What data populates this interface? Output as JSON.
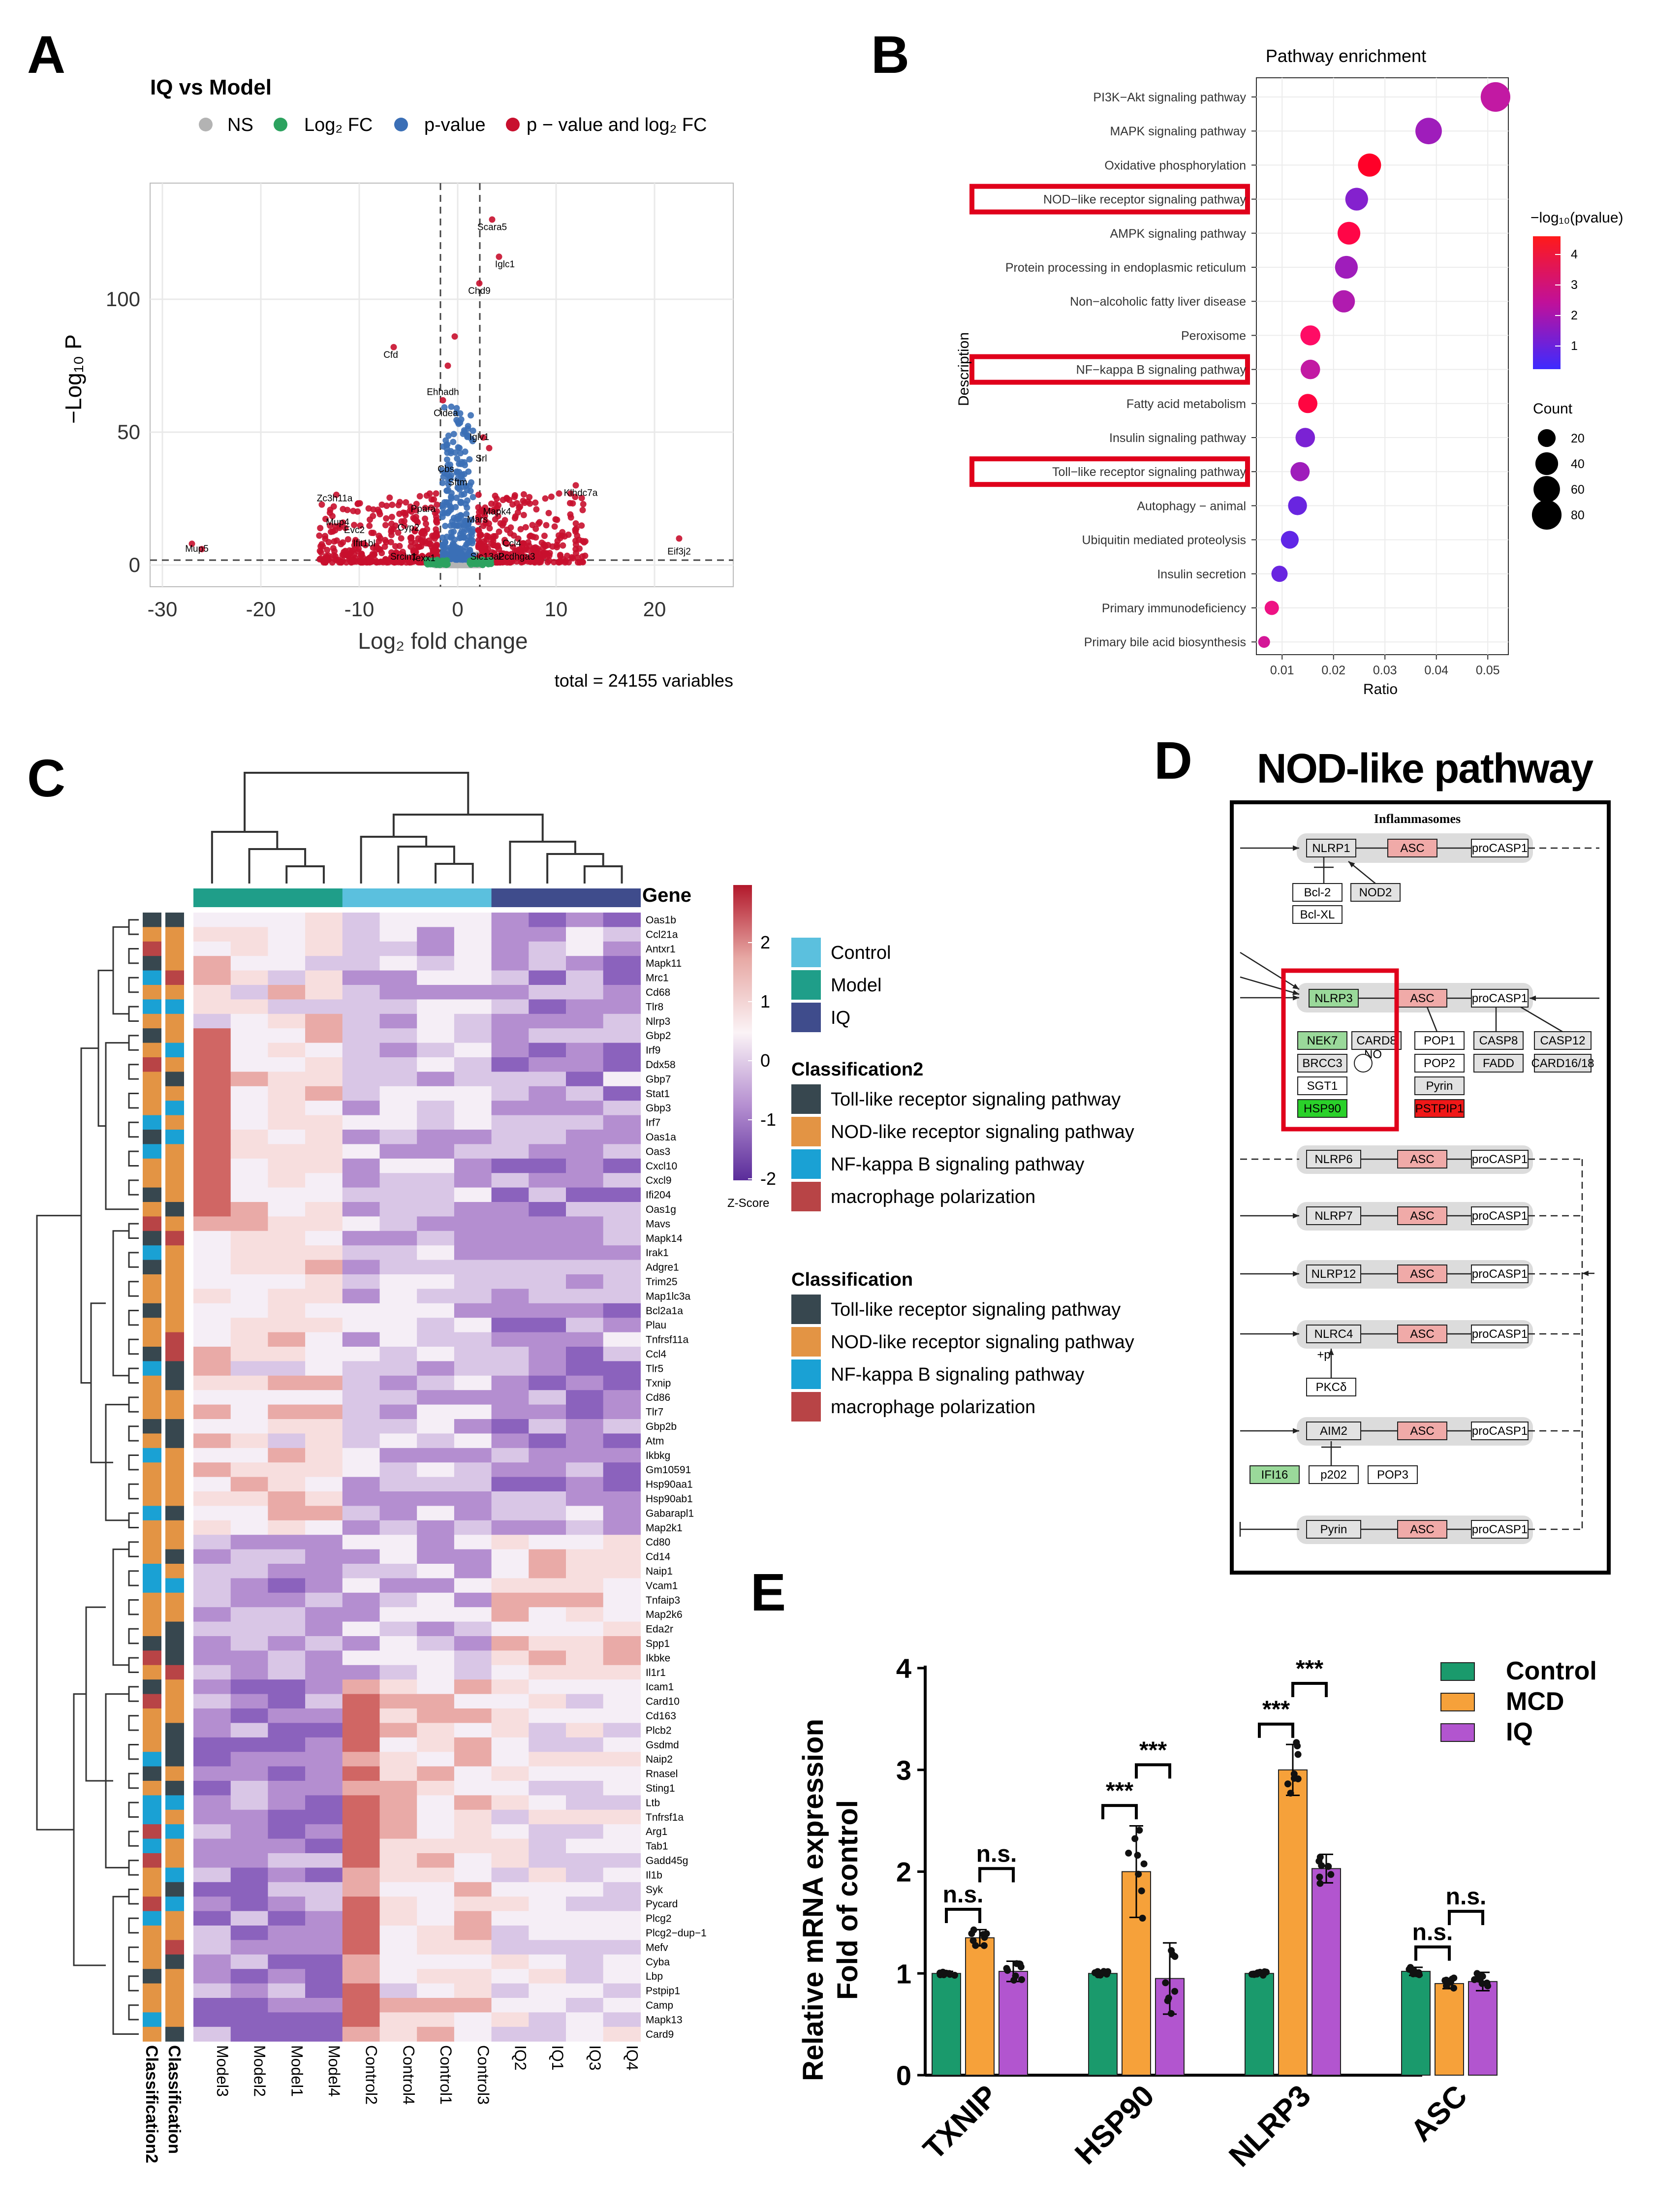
{
  "panels": {
    "A": "A",
    "B": "B",
    "C": "C",
    "D": "D",
    "E": "E"
  },
  "volcano": {
    "title": "IQ vs Model",
    "legend": [
      "NS",
      "Log₂ FC",
      "p-value",
      "p − value and log₂ FC"
    ],
    "xlabel": "Log₂ fold change",
    "ylabel": "−Log₁₀ P",
    "xticks": [
      "-30",
      "-20",
      "-10",
      "0",
      "10",
      "20"
    ],
    "yticks": [
      "0",
      "50",
      "100"
    ],
    "caption": "total = 24155 variables",
    "genes": [
      "Scara5",
      "Iglc1",
      "Chd9",
      "Cfd",
      "Ehhadh",
      "Cidea",
      "Iglv1",
      "Srl",
      "Cbs",
      "Zc3h11a",
      "Mup5",
      "Eif3j2",
      "Klhdc7a",
      "Pcdhga3",
      "Slc13a2",
      "Srcin1",
      "Texx1",
      "Ifit1bl",
      "Evc2",
      "Mup4",
      "Ppara",
      "Cyp2",
      "Mapk4",
      "Mars",
      "Ccl4",
      "Sftm"
    ],
    "colors": {
      "ns": "#b3b3b3",
      "fc": "#2ca25f",
      "p": "#3b6fb6",
      "both": "#c8102e"
    }
  },
  "chart_data": [
    {
      "type": "scatter",
      "title": "Pathway enrichment",
      "xlabel": "Ratio",
      "ylabel": "Description",
      "xticks": [
        "0.01",
        "0.02",
        "0.03",
        "0.04",
        "0.05"
      ],
      "xlim": [
        0.005,
        0.054
      ],
      "colorbar_title": "−log₁₀(pvalue)",
      "colorbar_ticks": [
        "4",
        "3",
        "2",
        "1"
      ],
      "size_title": "Count",
      "size_ticks": [
        "20",
        "40",
        "60",
        "80"
      ],
      "points": [
        {
          "term": "PI3K−Akt signaling pathway",
          "ratio": 0.0515,
          "logp": 2.0,
          "count": 80,
          "boxed": false
        },
        {
          "term": "MAPK signaling pathway",
          "ratio": 0.0385,
          "logp": 1.6,
          "count": 60,
          "boxed": false
        },
        {
          "term": "Oxidative phosphorylation",
          "ratio": 0.027,
          "logp": 4.0,
          "count": 42,
          "boxed": false
        },
        {
          "term": "NOD−like receptor signaling pathway",
          "ratio": 0.0245,
          "logp": 1.3,
          "count": 40,
          "boxed": true
        },
        {
          "term": "AMPK signaling pathway",
          "ratio": 0.023,
          "logp": 3.5,
          "count": 40,
          "boxed": false
        },
        {
          "term": "Protein processing in endoplasmic reticulum",
          "ratio": 0.0225,
          "logp": 1.6,
          "count": 40,
          "boxed": false
        },
        {
          "term": "Non−alcoholic fatty liver disease",
          "ratio": 0.022,
          "logp": 1.8,
          "count": 38,
          "boxed": false
        },
        {
          "term": "Peroxisome",
          "ratio": 0.0155,
          "logp": 3.0,
          "count": 28,
          "boxed": false
        },
        {
          "term": "NF−kappa B signaling pathway",
          "ratio": 0.0155,
          "logp": 2.0,
          "count": 26,
          "boxed": true
        },
        {
          "term": "Fatty acid metabolism",
          "ratio": 0.015,
          "logp": 3.6,
          "count": 25,
          "boxed": false
        },
        {
          "term": "Insulin signaling pathway",
          "ratio": 0.0145,
          "logp": 1.2,
          "count": 26,
          "boxed": false
        },
        {
          "term": "Toll−like receptor signaling pathway",
          "ratio": 0.0135,
          "logp": 1.6,
          "count": 25,
          "boxed": true
        },
        {
          "term": "Autophagy − animal",
          "ratio": 0.013,
          "logp": 1.0,
          "count": 24,
          "boxed": false
        },
        {
          "term": "Ubiquitin mediated proteolysis",
          "ratio": 0.0115,
          "logp": 0.9,
          "count": 20,
          "boxed": false
        },
        {
          "term": "Insulin secretion",
          "ratio": 0.0095,
          "logp": 1.0,
          "count": 15,
          "boxed": false
        },
        {
          "term": "Primary immunodeficiency",
          "ratio": 0.008,
          "logp": 2.5,
          "count": 10,
          "boxed": false
        },
        {
          "term": "Primary bile acid biosynthesis",
          "ratio": 0.0065,
          "logp": 2.2,
          "count": 5,
          "boxed": false
        }
      ]
    },
    {
      "type": "bar",
      "ylabel_line1": "Relative mRNA expression",
      "ylabel_line2": "Fold of control",
      "categories": [
        "TXNIP",
        "HSP90",
        "NLRP3",
        "ASC"
      ],
      "ylim": [
        0,
        4
      ],
      "yticks": [
        "0",
        "1",
        "2",
        "3",
        "4"
      ],
      "series": [
        {
          "name": "Control",
          "color": "#1a9a6c",
          "values": [
            1.0,
            1.0,
            1.0,
            1.02
          ],
          "err": [
            0.02,
            0.02,
            0.02,
            0.04
          ]
        },
        {
          "name": "MCD",
          "color": "#f6a13a",
          "values": [
            1.35,
            2.0,
            3.0,
            0.9
          ],
          "err": [
            0.08,
            0.45,
            0.25,
            0.05
          ]
        },
        {
          "name": "IQ",
          "color": "#b255cf",
          "values": [
            1.02,
            0.95,
            2.03,
            0.92
          ],
          "err": [
            0.1,
            0.35,
            0.14,
            0.09
          ]
        }
      ],
      "significance": [
        {
          "cat": 0,
          "from": 0,
          "to": 1,
          "label": "n.s."
        },
        {
          "cat": 0,
          "from": 1,
          "to": 2,
          "label": "n.s."
        },
        {
          "cat": 1,
          "from": 0,
          "to": 1,
          "label": "***"
        },
        {
          "cat": 1,
          "from": 1,
          "to": 2,
          "label": "***"
        },
        {
          "cat": 2,
          "from": 0,
          "to": 1,
          "label": "***"
        },
        {
          "cat": 2,
          "from": 1,
          "to": 2,
          "label": "***"
        },
        {
          "cat": 3,
          "from": 0,
          "to": 1,
          "label": "n.s."
        },
        {
          "cat": 3,
          "from": 1,
          "to": 2,
          "label": "n.s."
        }
      ]
    }
  ],
  "heatmap": {
    "group_header": "Gene",
    "samples": [
      "Model3",
      "Model2",
      "Model1",
      "Model4",
      "Control2",
      "Control4",
      "Control1",
      "Control3",
      "IQ2",
      "IQ1",
      "IQ3",
      "IQ4"
    ],
    "genes": [
      "Oas1b",
      "Ccl21a",
      "Antxr1",
      "Mapk11",
      "Mrc1",
      "Cd68",
      "Tlr8",
      "Nlrp3",
      "Gbp2",
      "Irf9",
      "Ddx58",
      "Gbp7",
      "Stat1",
      "Gbp3",
      "Irf7",
      "Oas1a",
      "Oas3",
      "Cxcl10",
      "Cxcl9",
      "Ifi204",
      "Oas1g",
      "Mavs",
      "Mapk14",
      "Irak1",
      "Adgre1",
      "Trim25",
      "Map1lc3a",
      "Bcl2a1a",
      "Plau",
      "Tnfrsf11a",
      "Ccl4",
      "Tlr5",
      "Txnip",
      "Cd86",
      "Tlr7",
      "Gbp2b",
      "Atm",
      "Ikbkg",
      "Gm10591",
      "Hsp90aa1",
      "Hsp90ab1",
      "Gabarapl1",
      "Map2k1",
      "Cd80",
      "Cd14",
      "Naip1",
      "Vcam1",
      "Tnfaip3",
      "Map2k6",
      "Eda2r",
      "Spp1",
      "Ikbke",
      "Il1r1",
      "Icam1",
      "Card10",
      "Cd163",
      "Plcb2",
      "Gsdmd",
      "Naip2",
      "Rnasel",
      "Sting1",
      "Ltb",
      "Tnfrsf1a",
      "Arg1",
      "Tab1",
      "Gadd45g",
      "Il1b",
      "Syk",
      "Pycard",
      "Plcg2",
      "Plcg2−dup−1",
      "Mefv",
      "Cyba",
      "Lbp",
      "Pstpip1",
      "Camp",
      "Mapk13",
      "Card9"
    ],
    "colorbar_ticks": [
      "2",
      "1",
      "0",
      "-1",
      "-2"
    ],
    "colorbar_label": "Z-Score",
    "group_legend": [
      "Control",
      "Model",
      "IQ"
    ],
    "group_colors": {
      "Control": "#5bc0de",
      "Model": "#1f9e89",
      "IQ": "#3f4c8c"
    },
    "class2_title": "Classification2",
    "class_title": "Classification",
    "class_items": [
      "Toll-like receptor signaling pathway",
      "NOD-like receptor signaling pathway",
      "NF-kappa B signaling pathway",
      "macrophage polarization"
    ],
    "class_colors": [
      "#37474f",
      "#e39444",
      "#1aa1d4",
      "#b84446"
    ],
    "col_labels": [
      "Classification2",
      "Classification"
    ]
  },
  "pathway": {
    "title": "NOD-like pathway",
    "box_title": "Inflammasomes",
    "nodes": {
      "nlrp1": "NLRP1",
      "asc": "ASC",
      "procasp1": "proCASP1",
      "bcl2": "Bcl-2",
      "nod2": "NOD2",
      "bclxl": "Bcl-XL",
      "nlrp3": "NLRP3",
      "nek7": "NEK7",
      "card8": "CARD8",
      "brcc3": "BRCC3",
      "no": "NO",
      "sgt1": "SGT1",
      "hsp90": "HSP90",
      "pop1": "POP1",
      "pop2": "POP2",
      "pyrin": "Pyrin",
      "pstpip1": "PSTPIP1",
      "casp8": "CASP8",
      "fadd": "FADD",
      "casp12": "CASP12",
      "card16": "CARD16/18",
      "nlrp6": "NLRP6",
      "nlrp7": "NLRP7",
      "nlrp12": "NLRP12",
      "nlrc4": "NLRC4",
      "p": "+p",
      "pkcd": "PKCδ",
      "aim2": "AIM2",
      "ifi16": "IFI16",
      "p202": "p202",
      "pop3": "POP3"
    }
  }
}
